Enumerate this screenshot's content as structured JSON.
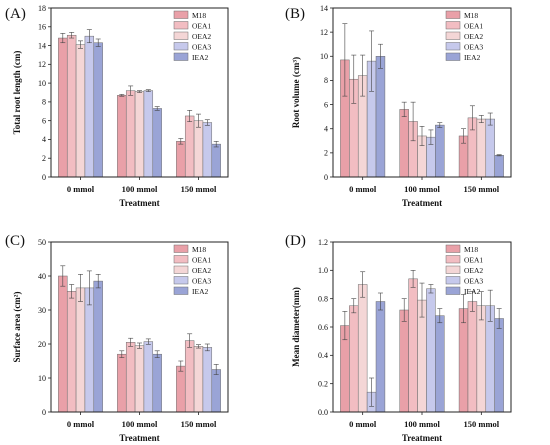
{
  "chart_data": [
    {
      "type": "bar",
      "panel_label": "(A)",
      "categories": [
        "0 mmol",
        "100 mmol",
        "150 mmol"
      ],
      "xlabel": "Treatment",
      "ylabel": "Total root length (cm)",
      "ylim": [
        0,
        18
      ],
      "yticks": [
        0,
        2,
        4,
        6,
        8,
        10,
        12,
        14,
        16,
        18
      ],
      "legend_position": "top-right",
      "series": [
        {
          "name": "M18",
          "color": "#e9a0a8",
          "values": [
            14.8,
            8.7,
            3.8
          ],
          "errors": [
            0.5,
            0.1,
            0.3
          ]
        },
        {
          "name": "OEA1",
          "color": "#f2bdc2",
          "values": [
            15.1,
            9.2,
            6.5
          ],
          "errors": [
            0.3,
            0.5,
            0.6
          ]
        },
        {
          "name": "OEA2",
          "color": "#f4d6d6",
          "values": [
            14.1,
            9.1,
            6.0
          ],
          "errors": [
            0.4,
            0.1,
            0.7
          ]
        },
        {
          "name": "OEA3",
          "color": "#c6c9ec",
          "values": [
            15.0,
            9.2,
            5.8
          ],
          "errors": [
            0.7,
            0.1,
            0.3
          ]
        },
        {
          "name": "IEA2",
          "color": "#9aa4d6",
          "values": [
            14.3,
            7.3,
            3.5
          ],
          "errors": [
            0.4,
            0.2,
            0.3
          ]
        }
      ]
    },
    {
      "type": "bar",
      "panel_label": "(B)",
      "categories": [
        "0 mmol",
        "100 mmol",
        "150 mmol"
      ],
      "xlabel": "Treatment",
      "ylabel": "Root volume (cm³)",
      "ylim": [
        0,
        14
      ],
      "yticks": [
        0,
        2,
        4,
        6,
        8,
        10,
        12,
        14
      ],
      "legend_position": "top-right",
      "series": [
        {
          "name": "M18",
          "color": "#e9a0a8",
          "values": [
            9.7,
            5.6,
            3.4
          ],
          "errors": [
            3.0,
            0.6,
            0.6
          ]
        },
        {
          "name": "OEA1",
          "color": "#f2bdc2",
          "values": [
            8.1,
            4.6,
            4.9
          ],
          "errors": [
            2.0,
            1.6,
            1.0
          ]
        },
        {
          "name": "OEA2",
          "color": "#f4d6d6",
          "values": [
            8.4,
            3.4,
            4.8
          ],
          "errors": [
            1.7,
            0.8,
            0.3
          ]
        },
        {
          "name": "OEA3",
          "color": "#c6c9ec",
          "values": [
            9.6,
            3.3,
            4.8
          ],
          "errors": [
            2.5,
            0.6,
            0.5
          ]
        },
        {
          "name": "IEA2",
          "color": "#9aa4d6",
          "values": [
            10.0,
            4.3,
            1.8
          ],
          "errors": [
            1.0,
            0.2,
            0.05
          ]
        }
      ]
    },
    {
      "type": "bar",
      "panel_label": "(C)",
      "categories": [
        "0 mmol",
        "100 mmol",
        "150 mmol"
      ],
      "xlabel": "Treatment",
      "ylabel": "Surface area (cm²)",
      "ylim": [
        0,
        50
      ],
      "yticks": [
        0,
        10,
        20,
        30,
        40,
        50
      ],
      "legend_position": "top-right",
      "series": [
        {
          "name": "M18",
          "color": "#e9a0a8",
          "values": [
            40.0,
            17.0,
            13.5
          ],
          "errors": [
            3.0,
            1.0,
            1.5
          ]
        },
        {
          "name": "OEA1",
          "color": "#f2bdc2",
          "values": [
            35.5,
            20.5,
            21.0
          ],
          "errors": [
            2.0,
            1.2,
            2.0
          ]
        },
        {
          "name": "OEA2",
          "color": "#f4d6d6",
          "values": [
            36.5,
            19.5,
            19.3
          ],
          "errors": [
            4.0,
            0.8,
            0.5
          ]
        },
        {
          "name": "OEA3",
          "color": "#c6c9ec",
          "values": [
            36.5,
            20.7,
            19.0
          ],
          "errors": [
            5.0,
            0.8,
            1.0
          ]
        },
        {
          "name": "IEA2",
          "color": "#9aa4d6",
          "values": [
            38.5,
            17.0,
            12.5
          ],
          "errors": [
            2.0,
            1.0,
            1.5
          ]
        }
      ]
    },
    {
      "type": "bar",
      "panel_label": "(D)",
      "categories": [
        "0 mmol",
        "100 mmol",
        "150 mmol"
      ],
      "xlabel": "Treatment",
      "ylabel": "Mean diameter(mm)",
      "ylim": [
        0,
        1.2
      ],
      "yticks": [
        0.0,
        0.2,
        0.4,
        0.6,
        0.8,
        1.0,
        1.2
      ],
      "legend_position": "top-right",
      "series": [
        {
          "name": "M18",
          "color": "#e9a0a8",
          "values": [
            0.61,
            0.72,
            0.73
          ],
          "errors": [
            0.1,
            0.08,
            0.1
          ]
        },
        {
          "name": "OEA1",
          "color": "#f2bdc2",
          "values": [
            0.75,
            0.94,
            0.78
          ],
          "errors": [
            0.05,
            0.06,
            0.07
          ]
        },
        {
          "name": "OEA2",
          "color": "#f4d6d6",
          "values": [
            0.9,
            0.79,
            0.75
          ],
          "errors": [
            0.09,
            0.12,
            0.1
          ]
        },
        {
          "name": "OEA3",
          "color": "#c6c9ec",
          "values": [
            0.14,
            0.87,
            0.75
          ],
          "errors": [
            0.1,
            0.03,
            0.11
          ]
        },
        {
          "name": "IEA2",
          "color": "#9aa4d6",
          "values": [
            0.78,
            0.68,
            0.66
          ],
          "errors": [
            0.06,
            0.05,
            0.07
          ]
        }
      ]
    }
  ]
}
